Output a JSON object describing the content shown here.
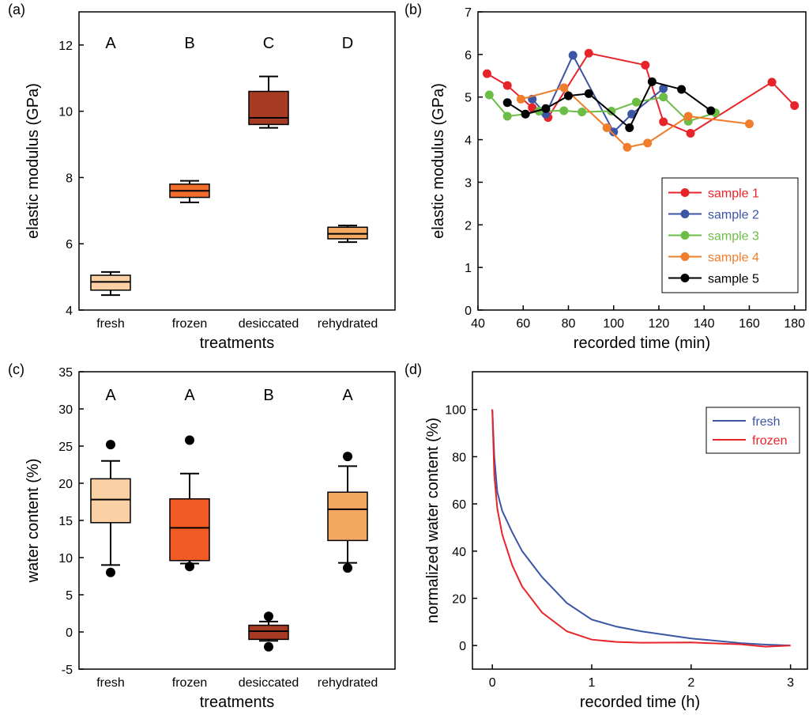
{
  "chart_data": [
    {
      "type": "box",
      "panel_label": "(a)",
      "xlabel": "treatments",
      "ylabel": "elastic modulus (GPa)",
      "categories": [
        "fresh",
        "frozen",
        "desiccated",
        "rehydrated"
      ],
      "group_labels": [
        "A",
        "B",
        "C",
        "D"
      ],
      "boxes": [
        {
          "whislo": 4.45,
          "q1": 4.6,
          "med": 4.85,
          "q3": 5.05,
          "whishi": 5.15,
          "fliers": [],
          "color": "#fbd0a5"
        },
        {
          "whislo": 7.25,
          "q1": 7.4,
          "med": 7.6,
          "q3": 7.8,
          "whishi": 7.9,
          "fliers": [],
          "color": "#f06d2b"
        },
        {
          "whislo": 9.5,
          "q1": 9.6,
          "med": 9.8,
          "q3": 10.6,
          "whishi": 11.05,
          "fliers": [],
          "color": "#a63a22"
        },
        {
          "whislo": 6.05,
          "q1": 6.15,
          "med": 6.3,
          "q3": 6.5,
          "whishi": 6.55,
          "fliers": [],
          "color": "#f5a862"
        }
      ],
      "ylim": [
        4,
        13
      ],
      "yticks": [
        4,
        6,
        8,
        10,
        12
      ]
    },
    {
      "type": "line",
      "panel_label": "(b)",
      "xlabel": "recorded time (min)",
      "ylabel": "elastic modulus (GPa)",
      "markers": true,
      "legend": "lower right",
      "series": [
        {
          "name": "sample 1",
          "color": "#e8242b",
          "x": [
            44,
            53,
            64,
            71,
            89,
            114,
            122,
            134,
            170,
            180
          ],
          "values": [
            5.55,
            5.27,
            4.75,
            4.52,
            6.03,
            5.75,
            4.42,
            4.15,
            5.35,
            4.8
          ]
        },
        {
          "name": "sample 2",
          "color": "#3c55a5",
          "x": [
            64,
            70,
            82,
            100,
            108,
            122
          ],
          "values": [
            4.95,
            4.6,
            5.98,
            4.18,
            4.6,
            5.2
          ]
        },
        {
          "name": "sample 3",
          "color": "#6cbd45",
          "x": [
            45,
            53,
            61,
            67,
            78,
            86,
            99,
            110,
            122,
            133,
            145
          ],
          "values": [
            5.05,
            4.55,
            4.6,
            4.67,
            4.68,
            4.65,
            4.67,
            4.88,
            5.0,
            4.43,
            4.63
          ]
        },
        {
          "name": "sample 4",
          "color": "#f07d2c",
          "x": [
            59,
            78,
            97,
            106,
            115,
            133,
            160
          ],
          "values": [
            4.95,
            5.22,
            4.28,
            3.82,
            3.92,
            4.55,
            4.37
          ]
        },
        {
          "name": "sample 5",
          "color": "#000000",
          "x": [
            53,
            61,
            70,
            80,
            89,
            107,
            117,
            130,
            143
          ],
          "values": [
            4.87,
            4.6,
            4.73,
            5.03,
            5.08,
            4.28,
            5.36,
            5.18,
            4.68
          ]
        }
      ],
      "xlim": [
        40,
        185
      ],
      "xticks": [
        40,
        60,
        80,
        100,
        120,
        140,
        160,
        180
      ],
      "ylim": [
        0,
        7
      ],
      "yticks": [
        0,
        1,
        2,
        3,
        4,
        5,
        6,
        7
      ]
    },
    {
      "type": "box",
      "panel_label": "(c)",
      "xlabel": "treatments",
      "ylabel": "water content (%)",
      "categories": [
        "fresh",
        "frozen",
        "desiccated",
        "rehydrated"
      ],
      "group_labels": [
        "A",
        "A",
        "B",
        "A"
      ],
      "boxes": [
        {
          "whislo": 9,
          "q1": 14.7,
          "med": 17.8,
          "q3": 20.6,
          "whishi": 23,
          "fliers": [
            8,
            25.2
          ],
          "color": "#fbd0a5"
        },
        {
          "whislo": 9.2,
          "q1": 9.6,
          "med": 14,
          "q3": 17.9,
          "whishi": 21.3,
          "fliers": [
            8.8,
            25.8
          ],
          "color": "#f05a24"
        },
        {
          "whislo": -1.2,
          "q1": -1,
          "med": 0.1,
          "q3": 0.9,
          "whishi": 1.4,
          "fliers": [
            -2,
            2.1
          ],
          "color": "#a63a22"
        },
        {
          "whislo": 9.3,
          "q1": 12.3,
          "med": 16.5,
          "q3": 18.8,
          "whishi": 22.3,
          "fliers": [
            8.6,
            23.6
          ],
          "color": "#f5a862"
        }
      ],
      "ylim": [
        -5,
        35
      ],
      "yticks": [
        -5,
        0,
        5,
        10,
        15,
        20,
        25,
        30,
        35
      ]
    },
    {
      "type": "line",
      "panel_label": "(d)",
      "xlabel": "recorded time (h)",
      "ylabel": "normalized water content (%)",
      "markers": false,
      "legend": "upper right",
      "x": [
        0,
        0.02,
        0.05,
        0.1,
        0.2,
        0.3,
        0.5,
        0.75,
        1,
        1.25,
        1.5,
        2,
        2.5,
        2.75,
        3
      ],
      "series": [
        {
          "name": "fresh",
          "color": "#3c55a5",
          "values": [
            100,
            80,
            65,
            57,
            48,
            40,
            29,
            18,
            11,
            8,
            6,
            3,
            1,
            0.4,
            0
          ]
        },
        {
          "name": "frozen",
          "color": "#e8242b",
          "values": [
            100,
            72,
            58,
            47,
            34,
            25,
            14,
            6,
            2.5,
            1.5,
            1.2,
            1.3,
            0.5,
            -0.5,
            0
          ]
        }
      ],
      "xlim": [
        -0.2,
        3.17
      ],
      "xticks": [
        0,
        1,
        2,
        3
      ],
      "ylim": [
        -10,
        116
      ],
      "yticks": [
        0,
        20,
        40,
        60,
        80,
        100
      ]
    }
  ]
}
